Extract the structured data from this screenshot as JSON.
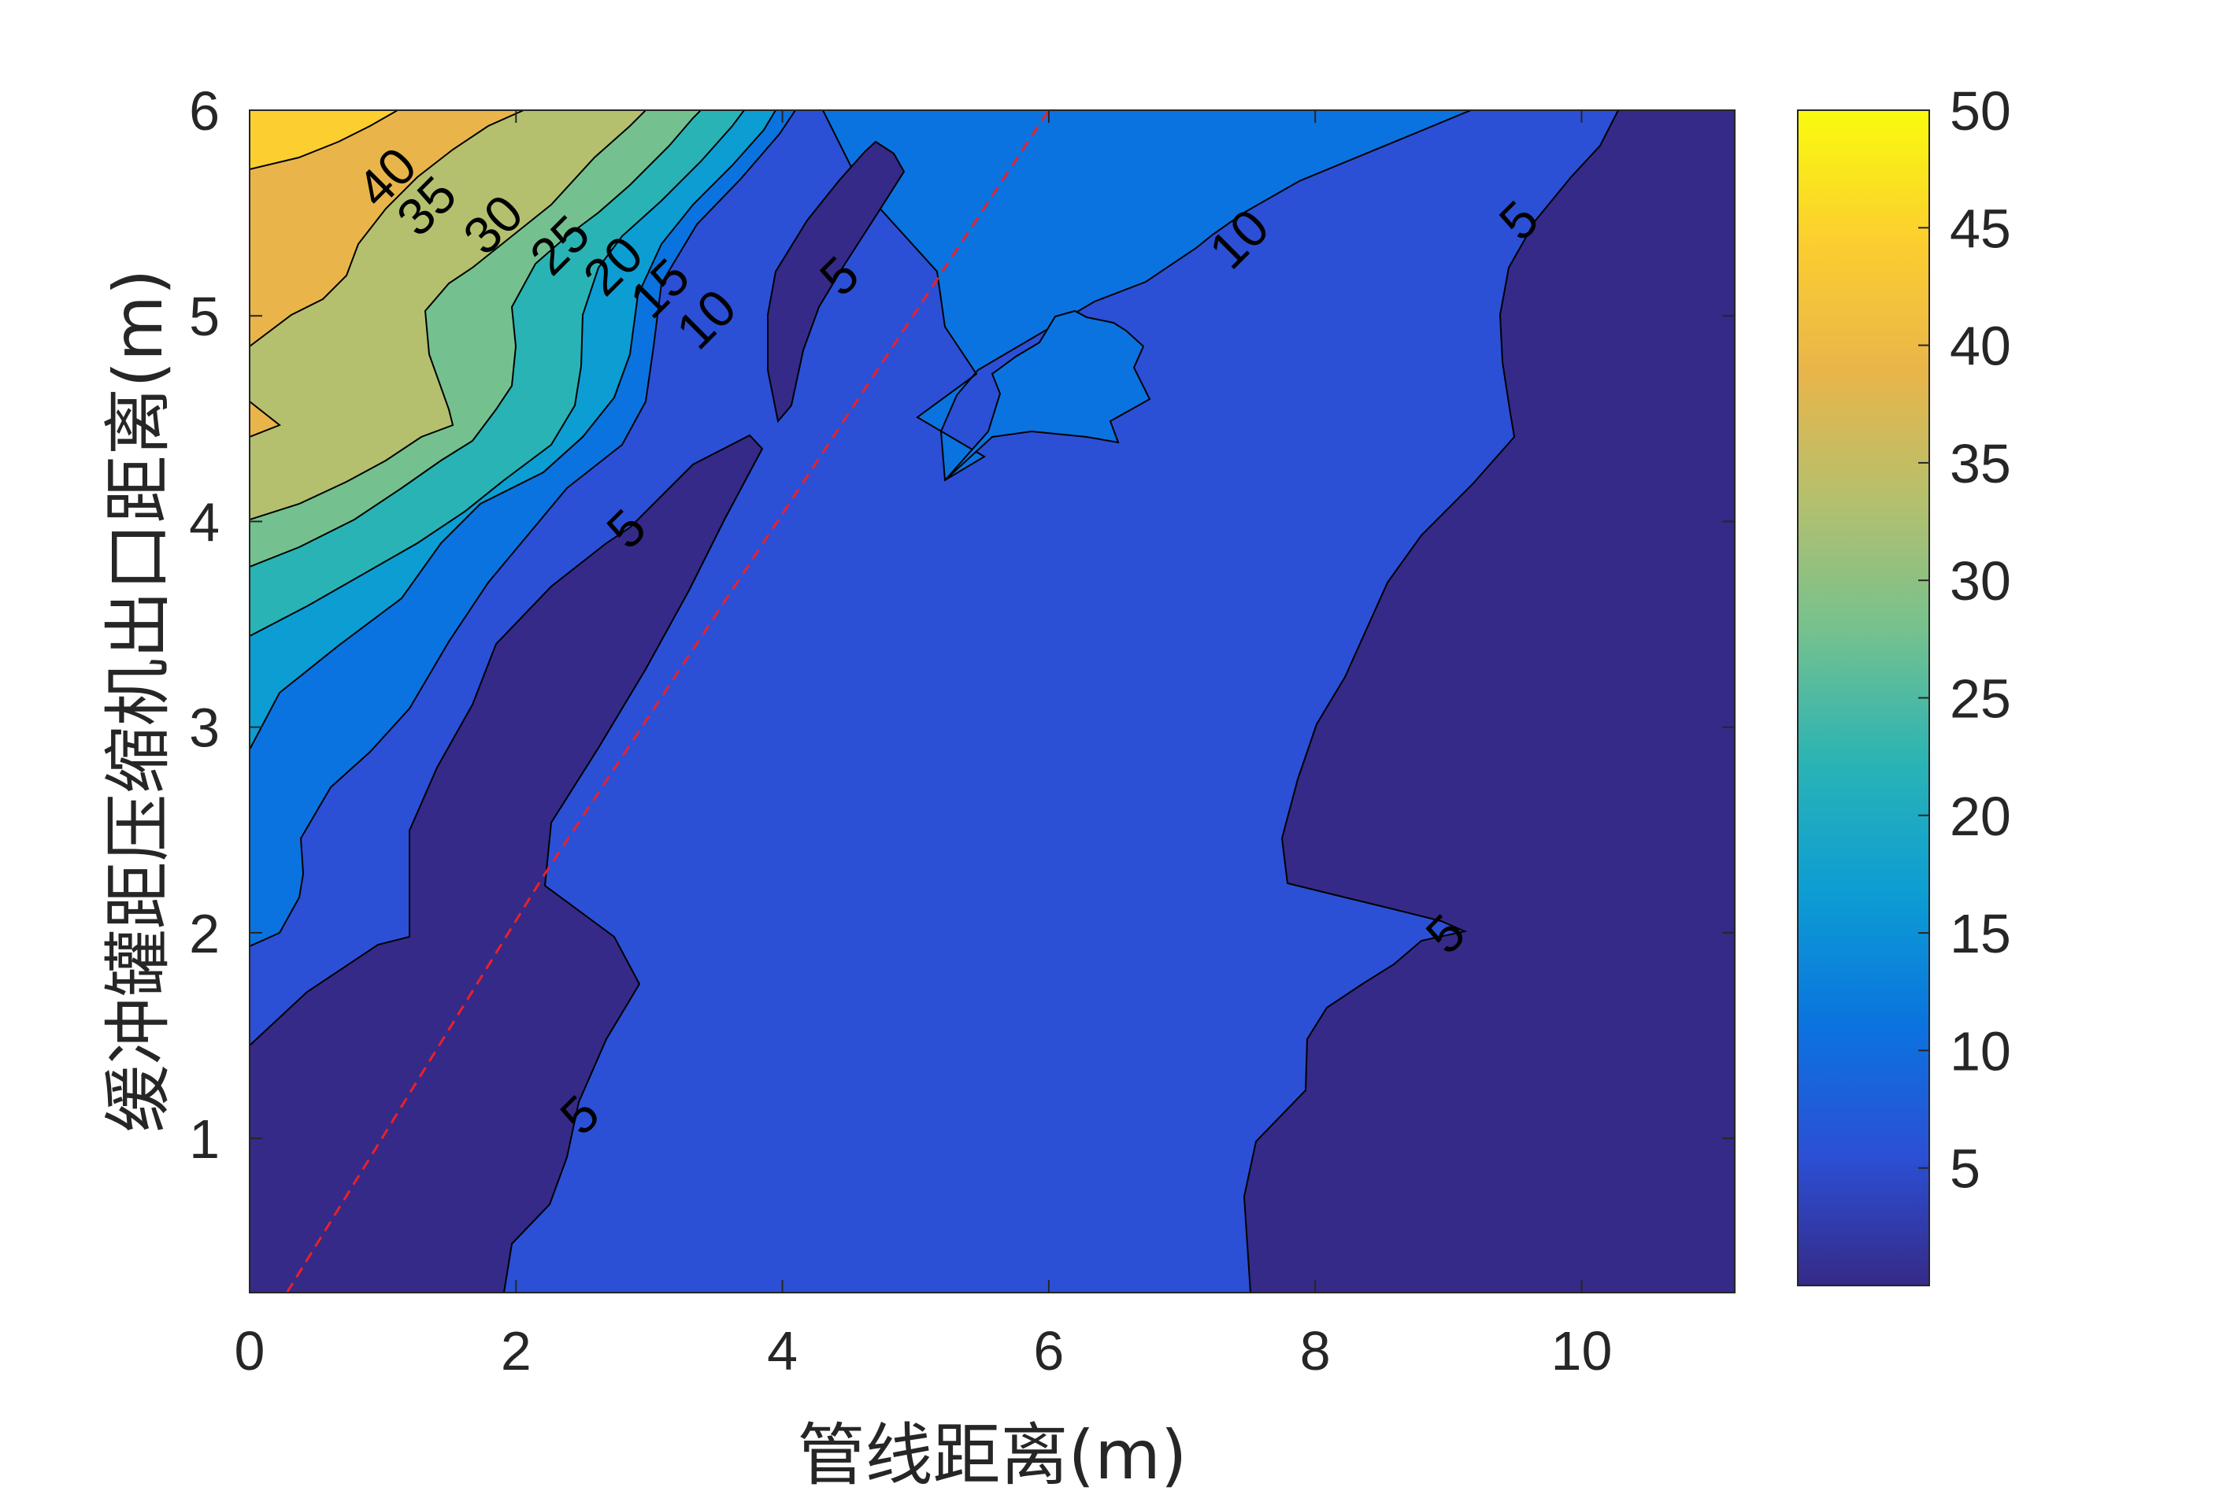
{
  "chart_data": {
    "type": "contour",
    "xlabel": "管线距离(m)",
    "ylabel": "缓冲罐距压缩机出口距离(m)",
    "xlim": [
      0,
      11.15
    ],
    "ylim": [
      0.25,
      6
    ],
    "x_ticks": [
      0,
      2,
      4,
      6,
      8,
      10
    ],
    "y_ticks": [
      1,
      2,
      3,
      4,
      5,
      6
    ],
    "grid": false,
    "colorbar": {
      "range": [
        0,
        50
      ],
      "ticks": [
        5,
        10,
        15,
        20,
        25,
        30,
        35,
        40,
        45,
        50
      ],
      "colormap": "parula",
      "colors": [
        "#352a87",
        "#2b50d6",
        "#0b73df",
        "#0c9dd3",
        "#2ab3b5",
        "#74c18f",
        "#b4c06e",
        "#e9b54a",
        "#fcce2f",
        "#f9fb0e"
      ]
    },
    "levels": [
      5,
      10,
      15,
      20,
      25,
      30,
      35,
      40,
      45
    ],
    "contour_labels": [
      {
        "text": "40",
        "x": 1.05,
        "y": 5.66
      },
      {
        "text": "35",
        "x": 1.35,
        "y": 5.52
      },
      {
        "text": "30",
        "x": 1.85,
        "y": 5.43
      },
      {
        "text": "25",
        "x": 2.35,
        "y": 5.33
      },
      {
        "text": "20",
        "x": 2.75,
        "y": 5.23
      },
      {
        "text": "15",
        "x": 3.1,
        "y": 5.12
      },
      {
        "text": "10",
        "x": 3.45,
        "y": 4.97
      },
      {
        "text": "5",
        "x": 4.45,
        "y": 5.18
      },
      {
        "text": "10",
        "x": 7.45,
        "y": 5.36
      },
      {
        "text": "5",
        "x": 9.55,
        "y": 5.45
      },
      {
        "text": "5",
        "x": 2.85,
        "y": 3.95
      },
      {
        "text": "5",
        "x": 9.0,
        "y": 1.98
      },
      {
        "text": "5",
        "x": 2.5,
        "y": 1.1
      }
    ],
    "reference_line": {
      "style": "dashed",
      "color": "#e8212a",
      "points": [
        [
          0.28,
          0.25
        ],
        [
          2.2,
          2.27
        ],
        [
          6.0,
          6.0
        ]
      ]
    }
  }
}
